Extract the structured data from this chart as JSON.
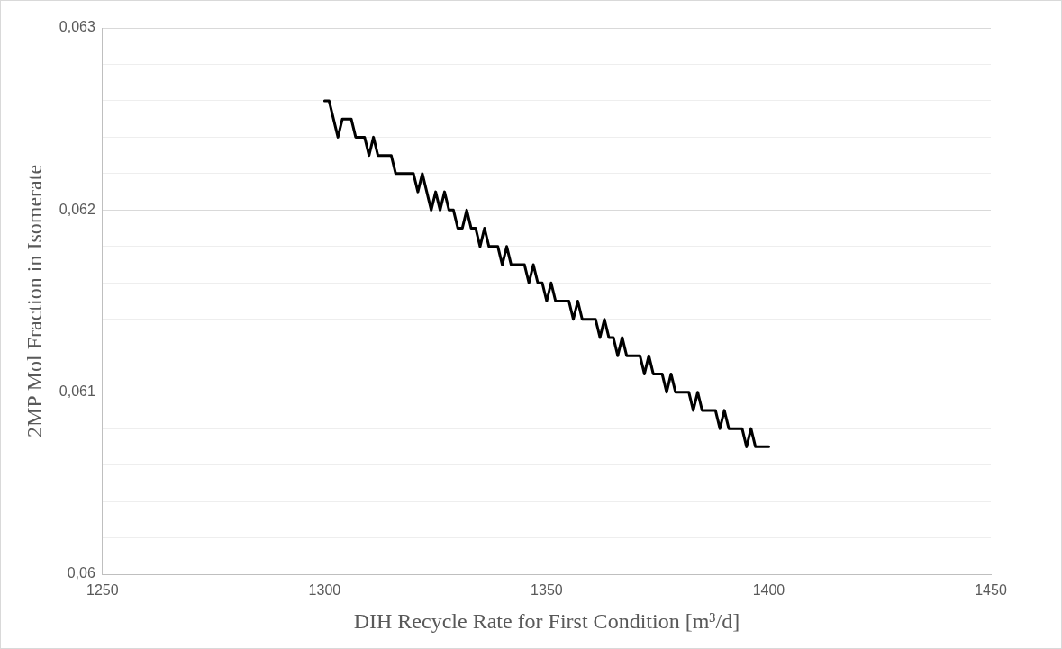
{
  "chart_data": {
    "type": "line",
    "xlabel": "DIH Recycle Rate for First Condition [m³/d]",
    "ylabel": "2MP Mol Fraction in Isomerate",
    "x": [
      1300,
      1301,
      1303,
      1304,
      1306,
      1307,
      1309,
      1310,
      1311,
      1312,
      1315,
      1316,
      1320,
      1321,
      1322,
      1324,
      1325,
      1326,
      1327,
      1328,
      1329,
      1330,
      1331,
      1332,
      1333,
      1334,
      1335,
      1336,
      1337,
      1339,
      1340,
      1341,
      1342,
      1345,
      1346,
      1347,
      1348,
      1349,
      1350,
      1351,
      1352,
      1355,
      1356,
      1357,
      1358,
      1361,
      1362,
      1363,
      1364,
      1365,
      1366,
      1367,
      1368,
      1371,
      1372,
      1373,
      1374,
      1376,
      1377,
      1378,
      1379,
      1382,
      1383,
      1384,
      1385,
      1388,
      1389,
      1390,
      1391,
      1394,
      1395,
      1396,
      1397,
      1400
    ],
    "series": [
      {
        "color": "#000000",
        "values": [
          0.0626,
          0.0626,
          0.0624,
          0.0625,
          0.0625,
          0.0624,
          0.0624,
          0.0623,
          0.0624,
          0.0623,
          0.0623,
          0.0622,
          0.0622,
          0.0621,
          0.0622,
          0.062,
          0.0621,
          0.062,
          0.0621,
          0.062,
          0.062,
          0.0619,
          0.0619,
          0.062,
          0.0619,
          0.0619,
          0.0618,
          0.0619,
          0.0618,
          0.0618,
          0.0617,
          0.0618,
          0.0617,
          0.0617,
          0.0616,
          0.0617,
          0.0616,
          0.0616,
          0.0615,
          0.0616,
          0.0615,
          0.0615,
          0.0614,
          0.0615,
          0.0614,
          0.0614,
          0.0613,
          0.0614,
          0.0613,
          0.0613,
          0.0612,
          0.0613,
          0.0612,
          0.0612,
          0.0611,
          0.0612,
          0.0611,
          0.0611,
          0.061,
          0.0611,
          0.061,
          0.061,
          0.0609,
          0.061,
          0.0609,
          0.0609,
          0.0608,
          0.0609,
          0.0608,
          0.0608,
          0.0607,
          0.0608,
          0.0607,
          0.0607
        ]
      }
    ],
    "xlim": [
      1250,
      1450
    ],
    "xticks": [
      1250,
      1300,
      1350,
      1400,
      1450
    ],
    "ylim": [
      0.06,
      0.063
    ],
    "yticks": [
      {
        "value": 0.06,
        "label": "0,06"
      },
      {
        "value": 0.0602,
        "label": null
      },
      {
        "value": 0.0604,
        "label": null
      },
      {
        "value": 0.0606,
        "label": null
      },
      {
        "value": 0.0608,
        "label": null
      },
      {
        "value": 0.061,
        "label": "0,061"
      },
      {
        "value": 0.0612,
        "label": null
      },
      {
        "value": 0.0614,
        "label": null
      },
      {
        "value": 0.0616,
        "label": null
      },
      {
        "value": 0.0618,
        "label": null
      },
      {
        "value": 0.062,
        "label": "0,062"
      },
      {
        "value": 0.0622,
        "label": null
      },
      {
        "value": 0.0624,
        "label": null
      },
      {
        "value": 0.0626,
        "label": null
      },
      {
        "value": 0.0628,
        "label": null
      },
      {
        "value": 0.063,
        "label": "0,063"
      }
    ],
    "grid": "y",
    "legend": false,
    "marker": "none",
    "line_style": "solid"
  }
}
